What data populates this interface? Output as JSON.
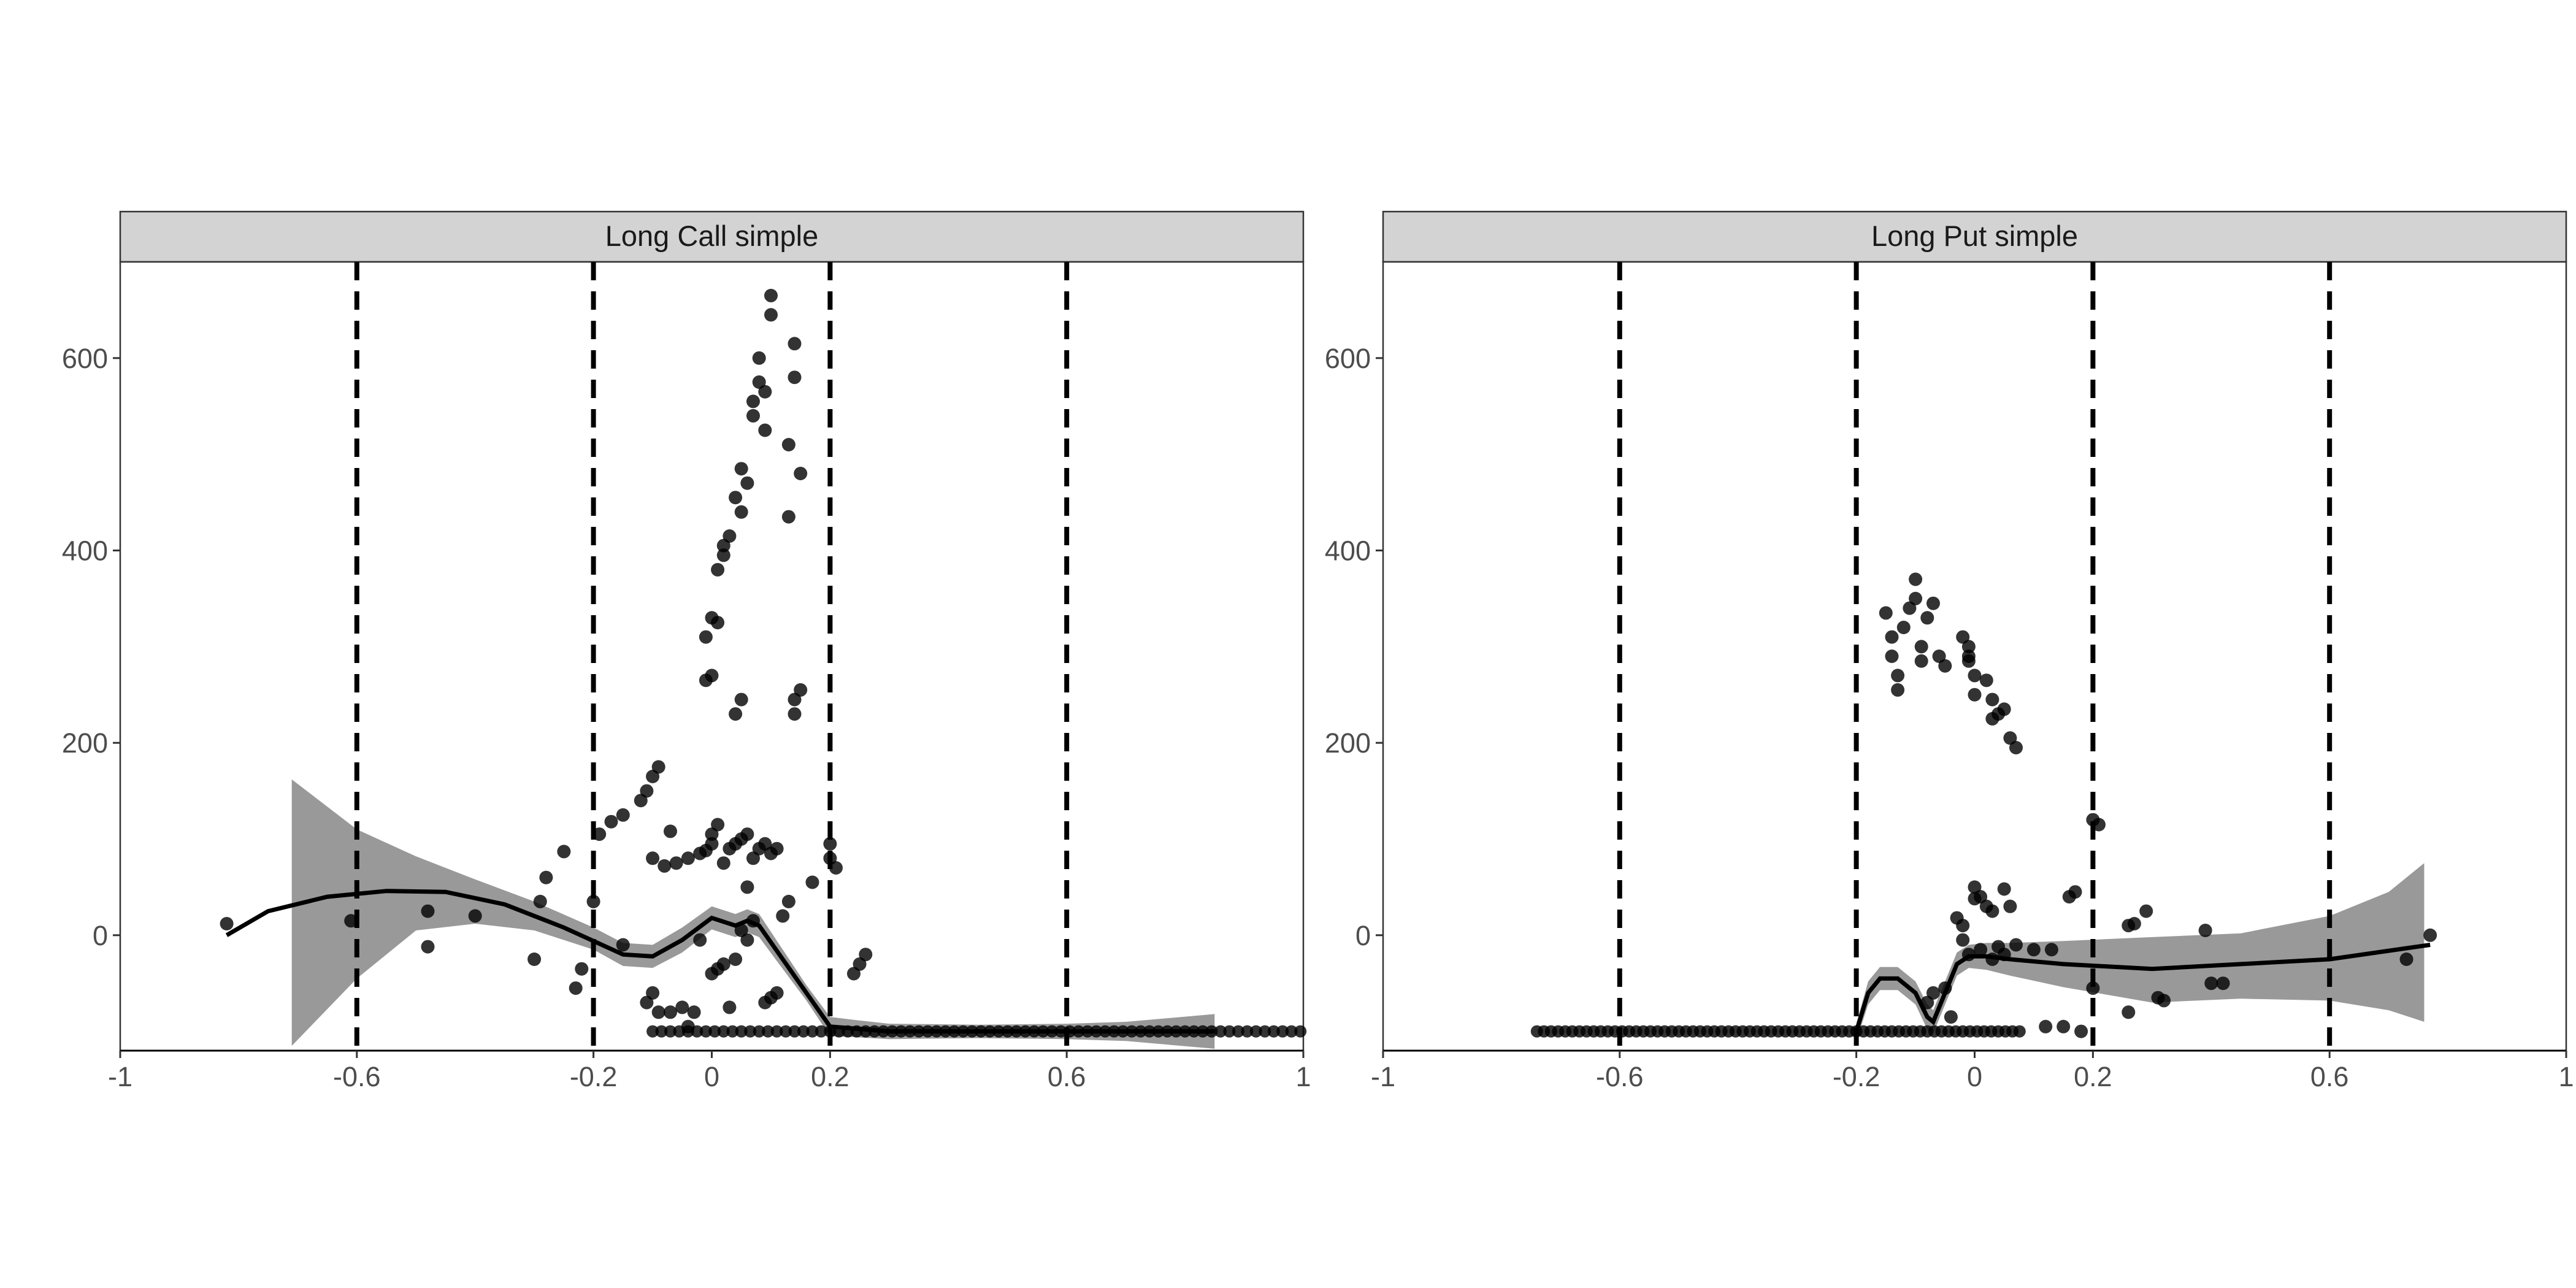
{
  "chart_data": [
    {
      "type": "scatter",
      "title": "Long Call simple",
      "xlim": [
        -1,
        1
      ],
      "ylim": [
        -120,
        700
      ],
      "x_ticks": [
        -1,
        -0.6,
        -0.2,
        0,
        0.2,
        0.6,
        1
      ],
      "x_tick_labels": [
        "-1",
        "-0.6",
        "-0.2",
        "0",
        "0.2",
        "0.6",
        "1"
      ],
      "y_ticks": [
        0,
        200,
        400,
        600
      ],
      "y_tick_labels": [
        "0",
        "200",
        "400",
        "600"
      ],
      "vlines": [
        -0.6,
        -0.2,
        0.2,
        0.6
      ],
      "grid": false,
      "points": [
        [
          -0.82,
          12
        ],
        [
          -0.61,
          15
        ],
        [
          -0.48,
          25
        ],
        [
          -0.48,
          -12
        ],
        [
          -0.4,
          20
        ],
        [
          -0.3,
          -25
        ],
        [
          -0.29,
          35
        ],
        [
          -0.28,
          60
        ],
        [
          -0.25,
          87
        ],
        [
          -0.23,
          -55
        ],
        [
          -0.22,
          -35
        ],
        [
          -0.2,
          35
        ],
        [
          -0.19,
          105
        ],
        [
          -0.17,
          118
        ],
        [
          -0.15,
          125
        ],
        [
          -0.12,
          140
        ],
        [
          -0.11,
          150
        ],
        [
          -0.1,
          165
        ],
        [
          -0.09,
          175
        ],
        [
          -0.1,
          80
        ],
        [
          -0.08,
          72
        ],
        [
          -0.07,
          108
        ],
        [
          -0.06,
          75
        ],
        [
          -0.04,
          80
        ],
        [
          -0.02,
          85
        ],
        [
          -0.01,
          88
        ],
        [
          0.0,
          95
        ],
        [
          0.0,
          105
        ],
        [
          0.01,
          115
        ],
        [
          0.02,
          75
        ],
        [
          0.03,
          90
        ],
        [
          0.04,
          95
        ],
        [
          0.05,
          100
        ],
        [
          0.06,
          105
        ],
        [
          0.07,
          80
        ],
        [
          0.08,
          90
        ],
        [
          0.09,
          95
        ],
        [
          0.1,
          85
        ],
        [
          0.11,
          90
        ],
        [
          -0.11,
          -70
        ],
        [
          -0.1,
          -60
        ],
        [
          -0.09,
          -80
        ],
        [
          -0.07,
          -80
        ],
        [
          -0.05,
          -75
        ],
        [
          -0.03,
          -80
        ],
        [
          -0.02,
          -5
        ],
        [
          0.0,
          -40
        ],
        [
          0.01,
          -35
        ],
        [
          0.02,
          -30
        ],
        [
          0.04,
          -25
        ],
        [
          0.05,
          5
        ],
        [
          0.06,
          -5
        ],
        [
          0.07,
          15
        ],
        [
          0.09,
          -70
        ],
        [
          0.1,
          -65
        ],
        [
          0.11,
          -60
        ],
        [
          -0.01,
          265
        ],
        [
          0.0,
          270
        ],
        [
          -0.01,
          310
        ],
        [
          0.0,
          330
        ],
        [
          0.01,
          325
        ],
        [
          0.01,
          380
        ],
        [
          0.02,
          395
        ],
        [
          0.02,
          405
        ],
        [
          0.03,
          415
        ],
        [
          0.04,
          455
        ],
        [
          0.05,
          440
        ],
        [
          0.05,
          485
        ],
        [
          0.06,
          470
        ],
        [
          0.04,
          230
        ],
        [
          0.05,
          245
        ],
        [
          0.07,
          540
        ],
        [
          0.07,
          555
        ],
        [
          0.08,
          575
        ],
        [
          0.08,
          600
        ],
        [
          0.09,
          565
        ],
        [
          0.09,
          525
        ],
        [
          0.1,
          665
        ],
        [
          0.1,
          645
        ],
        [
          0.14,
          615
        ],
        [
          0.14,
          580
        ],
        [
          0.13,
          510
        ],
        [
          0.13,
          435
        ],
        [
          0.15,
          480
        ],
        [
          0.14,
          245
        ],
        [
          0.14,
          230
        ],
        [
          0.15,
          255
        ],
        [
          0.2,
          95
        ],
        [
          0.2,
          80
        ],
        [
          0.21,
          70
        ],
        [
          0.25,
          -30
        ],
        [
          0.26,
          -20
        ],
        [
          0.24,
          -40
        ],
        [
          0.17,
          55
        ],
        [
          -0.15,
          -10
        ],
        [
          -0.04,
          -95
        ],
        [
          0.03,
          -75
        ],
        [
          0.06,
          50
        ],
        [
          0.12,
          20
        ],
        [
          0.13,
          35
        ]
      ],
      "baseline_points": {
        "y": -100,
        "x_from": -0.1,
        "x_to": 1.0,
        "step": 0.015
      },
      "smooth_line": [
        [
          -0.82,
          0
        ],
        [
          -0.75,
          25
        ],
        [
          -0.65,
          40
        ],
        [
          -0.55,
          46
        ],
        [
          -0.45,
          45
        ],
        [
          -0.35,
          32
        ],
        [
          -0.25,
          8
        ],
        [
          -0.15,
          -20
        ],
        [
          -0.1,
          -22
        ],
        [
          -0.05,
          -5
        ],
        [
          0.0,
          18
        ],
        [
          0.04,
          10
        ],
        [
          0.06,
          15
        ],
        [
          0.08,
          10
        ],
        [
          0.12,
          -25
        ],
        [
          0.16,
          -60
        ],
        [
          0.2,
          -95
        ],
        [
          0.24,
          -97
        ],
        [
          0.3,
          -100
        ],
        [
          0.45,
          -100
        ],
        [
          0.6,
          -100
        ],
        [
          0.85,
          -100
        ]
      ],
      "band_upper": [
        [
          -0.71,
          162
        ],
        [
          -0.6,
          110
        ],
        [
          -0.5,
          82
        ],
        [
          -0.4,
          58
        ],
        [
          -0.3,
          35
        ],
        [
          -0.2,
          8
        ],
        [
          -0.15,
          -8
        ],
        [
          -0.1,
          -10
        ],
        [
          -0.05,
          8
        ],
        [
          0.0,
          30
        ],
        [
          0.04,
          22
        ],
        [
          0.06,
          27
        ],
        [
          0.08,
          22
        ],
        [
          0.12,
          -15
        ],
        [
          0.16,
          -52
        ],
        [
          0.2,
          -85
        ],
        [
          0.24,
          -88
        ],
        [
          0.3,
          -92
        ],
        [
          0.45,
          -93
        ],
        [
          0.6,
          -92
        ],
        [
          0.7,
          -90
        ],
        [
          0.85,
          -82
        ]
      ],
      "band_lower": [
        [
          -0.71,
          -115
        ],
        [
          -0.6,
          -45
        ],
        [
          -0.5,
          5
        ],
        [
          -0.4,
          12
        ],
        [
          -0.3,
          5
        ],
        [
          -0.2,
          -15
        ],
        [
          -0.15,
          -32
        ],
        [
          -0.1,
          -34
        ],
        [
          -0.05,
          -18
        ],
        [
          0.0,
          6
        ],
        [
          0.04,
          -2
        ],
        [
          0.06,
          3
        ],
        [
          0.08,
          -2
        ],
        [
          0.12,
          -35
        ],
        [
          0.16,
          -68
        ],
        [
          0.2,
          -105
        ],
        [
          0.24,
          -106
        ],
        [
          0.3,
          -108
        ],
        [
          0.45,
          -107
        ],
        [
          0.6,
          -108
        ],
        [
          0.7,
          -110
        ],
        [
          0.85,
          -118
        ]
      ]
    },
    {
      "type": "scatter",
      "title": "Long Put simple",
      "xlim": [
        -1,
        1
      ],
      "ylim": [
        -120,
        700
      ],
      "x_ticks": [
        -1,
        -0.6,
        -0.2,
        0,
        0.2,
        0.6,
        1
      ],
      "x_tick_labels": [
        "-1",
        "-0.6",
        "-0.2",
        "0",
        "0.2",
        "0.6",
        "1"
      ],
      "y_ticks": [
        0,
        200,
        400,
        600
      ],
      "y_tick_labels": [
        "0",
        "200",
        "400",
        "600"
      ],
      "vlines": [
        -0.6,
        -0.2,
        0.2,
        0.6
      ],
      "grid": false,
      "points": [
        [
          -0.15,
          335
        ],
        [
          -0.14,
          310
        ],
        [
          -0.14,
          290
        ],
        [
          -0.13,
          270
        ],
        [
          -0.13,
          255
        ],
        [
          -0.12,
          320
        ],
        [
          -0.11,
          340
        ],
        [
          -0.1,
          370
        ],
        [
          -0.1,
          350
        ],
        [
          -0.09,
          300
        ],
        [
          -0.09,
          285
        ],
        [
          -0.08,
          330
        ],
        [
          -0.07,
          345
        ],
        [
          -0.06,
          290
        ],
        [
          -0.05,
          280
        ],
        [
          -0.02,
          310
        ],
        [
          -0.01,
          300
        ],
        [
          -0.01,
          285
        ],
        [
          0.0,
          270
        ],
        [
          0.0,
          250
        ],
        [
          0.02,
          265
        ],
        [
          0.03,
          245
        ],
        [
          0.04,
          230
        ],
        [
          0.05,
          235
        ],
        [
          0.06,
          205
        ],
        [
          0.07,
          195
        ],
        [
          0.03,
          225
        ],
        [
          -0.01,
          290
        ],
        [
          -0.03,
          18
        ],
        [
          -0.02,
          10
        ],
        [
          0.0,
          50
        ],
        [
          0.0,
          38
        ],
        [
          0.01,
          40
        ],
        [
          0.02,
          30
        ],
        [
          0.03,
          25
        ],
        [
          0.05,
          48
        ],
        [
          0.06,
          30
        ],
        [
          -0.02,
          -5
        ],
        [
          -0.01,
          -20
        ],
        [
          0.01,
          -15
        ],
        [
          0.03,
          -25
        ],
        [
          0.04,
          -12
        ],
        [
          0.05,
          -20
        ],
        [
          0.07,
          -10
        ],
        [
          0.1,
          -15
        ],
        [
          0.13,
          -15
        ],
        [
          0.17,
          45
        ],
        [
          0.16,
          40
        ],
        [
          0.2,
          120
        ],
        [
          0.21,
          115
        ],
        [
          0.2,
          -55
        ],
        [
          0.26,
          10
        ],
        [
          0.27,
          12
        ],
        [
          0.29,
          25
        ],
        [
          0.31,
          -65
        ],
        [
          0.32,
          -68
        ],
        [
          0.39,
          5
        ],
        [
          0.4,
          -50
        ],
        [
          0.42,
          -50
        ],
        [
          0.73,
          -25
        ],
        [
          0.77,
          0
        ],
        [
          0.26,
          -80
        ],
        [
          -0.05,
          -55
        ],
        [
          -0.07,
          -60
        ],
        [
          -0.04,
          -85
        ],
        [
          -0.08,
          -70
        ],
        [
          0.12,
          -95
        ],
        [
          0.15,
          -95
        ],
        [
          0.18,
          -100
        ]
      ],
      "baseline_points": {
        "y": -100,
        "x_from": -0.74,
        "x_to": 0.08,
        "step": 0.012
      },
      "smooth_line": [
        [
          -0.2,
          -100
        ],
        [
          -0.18,
          -60
        ],
        [
          -0.16,
          -45
        ],
        [
          -0.13,
          -45
        ],
        [
          -0.1,
          -60
        ],
        [
          -0.08,
          -85
        ],
        [
          -0.07,
          -90
        ],
        [
          -0.05,
          -60
        ],
        [
          -0.03,
          -30
        ],
        [
          -0.01,
          -22
        ],
        [
          0.02,
          -22
        ],
        [
          0.06,
          -25
        ],
        [
          0.15,
          -30
        ],
        [
          0.3,
          -35
        ],
        [
          0.45,
          -30
        ],
        [
          0.6,
          -25
        ],
        [
          0.77,
          -10
        ]
      ],
      "band_upper": [
        [
          -0.2,
          -92
        ],
        [
          -0.18,
          -48
        ],
        [
          -0.16,
          -33
        ],
        [
          -0.13,
          -33
        ],
        [
          -0.1,
          -48
        ],
        [
          -0.08,
          -72
        ],
        [
          -0.07,
          -78
        ],
        [
          -0.05,
          -48
        ],
        [
          -0.03,
          -18
        ],
        [
          -0.01,
          -10
        ],
        [
          0.02,
          -8
        ],
        [
          0.06,
          -8
        ],
        [
          0.15,
          -6
        ],
        [
          0.3,
          -2
        ],
        [
          0.45,
          2
        ],
        [
          0.6,
          20
        ],
        [
          0.7,
          45
        ],
        [
          0.76,
          75
        ]
      ],
      "band_lower": [
        [
          -0.2,
          -110
        ],
        [
          -0.18,
          -72
        ],
        [
          -0.16,
          -57
        ],
        [
          -0.13,
          -57
        ],
        [
          -0.1,
          -72
        ],
        [
          -0.08,
          -98
        ],
        [
          -0.07,
          -102
        ],
        [
          -0.05,
          -72
        ],
        [
          -0.03,
          -42
        ],
        [
          -0.01,
          -34
        ],
        [
          0.02,
          -36
        ],
        [
          0.06,
          -42
        ],
        [
          0.15,
          -54
        ],
        [
          0.3,
          -70
        ],
        [
          0.45,
          -66
        ],
        [
          0.6,
          -68
        ],
        [
          0.7,
          -78
        ],
        [
          0.76,
          -90
        ]
      ]
    }
  ]
}
